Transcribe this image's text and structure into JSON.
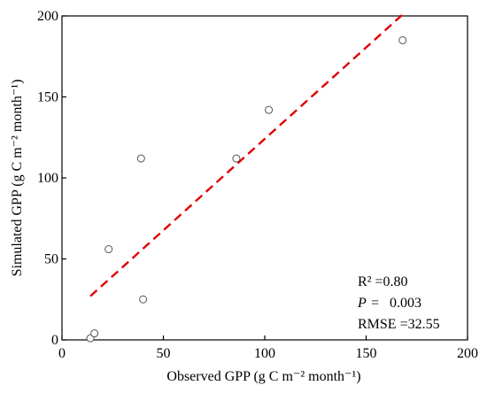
{
  "chart_data": {
    "type": "scatter",
    "xlabel": "Observed GPP (g C m⁻² month⁻¹)",
    "ylabel": "Simulated GPP (g C m⁻² month⁻¹)",
    "xlim": [
      0,
      200
    ],
    "ylim": [
      0,
      200
    ],
    "x_ticks": [
      "0",
      "50",
      "100",
      "150",
      "200"
    ],
    "y_ticks": [
      "0",
      "50",
      "100",
      "150",
      "200"
    ],
    "grid": false,
    "points": [
      {
        "x": 14,
        "y": 1
      },
      {
        "x": 16,
        "y": 4
      },
      {
        "x": 23,
        "y": 56
      },
      {
        "x": 39,
        "y": 112
      },
      {
        "x": 40,
        "y": 25
      },
      {
        "x": 86,
        "y": 112
      },
      {
        "x": 102,
        "y": 142
      },
      {
        "x": 168,
        "y": 185
      }
    ],
    "fit_line": {
      "x0": 14,
      "y0": 27,
      "x1": 169,
      "y1": 202,
      "color": "#e00000",
      "style": "dashed"
    },
    "annotations": {
      "r2": "R² =0.80",
      "p_label": "P",
      "p_value": "=   0.003",
      "rmse": "RMSE =32.55"
    },
    "point_color": "#ffffff",
    "point_stroke": "#555555"
  }
}
